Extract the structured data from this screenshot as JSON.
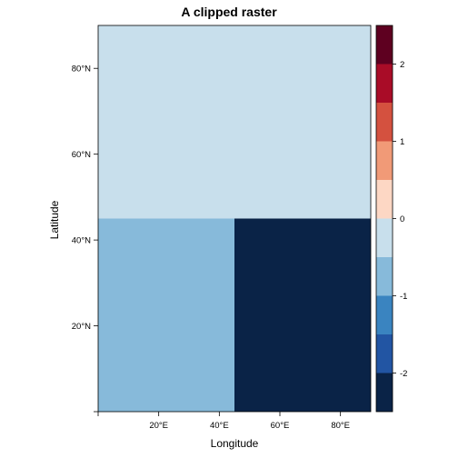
{
  "chart_data": {
    "type": "heatmap",
    "title": "A clipped raster",
    "xlabel": "Longitude",
    "ylabel": "Latitude",
    "xlim": [
      0,
      90
    ],
    "ylim": [
      0,
      90
    ],
    "x_ticks": [
      {
        "value": 20,
        "label": "20°E"
      },
      {
        "value": 40,
        "label": "40°E"
      },
      {
        "value": 60,
        "label": "60°E"
      },
      {
        "value": 80,
        "label": "80°E"
      }
    ],
    "y_ticks": [
      {
        "value": 20,
        "label": "20°N"
      },
      {
        "value": 40,
        "label": "40°N"
      },
      {
        "value": 60,
        "label": "60°N"
      },
      {
        "value": 80,
        "label": "80°N"
      }
    ],
    "cells": [
      {
        "x0": 0,
        "x1": 90,
        "y0": 45,
        "y1": 90,
        "value": -0.25
      },
      {
        "x0": 0,
        "x1": 45,
        "y0": 0,
        "y1": 45,
        "value": -0.75
      },
      {
        "x0": 45,
        "x1": 90,
        "y0": 0,
        "y1": 45,
        "value": -2.25
      }
    ],
    "colorbar": {
      "range": [
        -2.5,
        2.5
      ],
      "breaks": [
        -2.5,
        -2,
        -1.5,
        -1,
        -0.5,
        0,
        0.5,
        1,
        1.5,
        2,
        2.5
      ],
      "colors": [
        "#0a2347",
        "#2255a3",
        "#3a84c0",
        "#87bada",
        "#c8dfec",
        "#fdd7c4",
        "#f19a77",
        "#d4513f",
        "#a90c27",
        "#5e0020"
      ],
      "ticks": [
        {
          "value": -2,
          "label": "-2"
        },
        {
          "value": -1,
          "label": "-1"
        },
        {
          "value": 0,
          "label": "0"
        },
        {
          "value": 1,
          "label": "1"
        },
        {
          "value": 2,
          "label": "2"
        }
      ]
    }
  }
}
